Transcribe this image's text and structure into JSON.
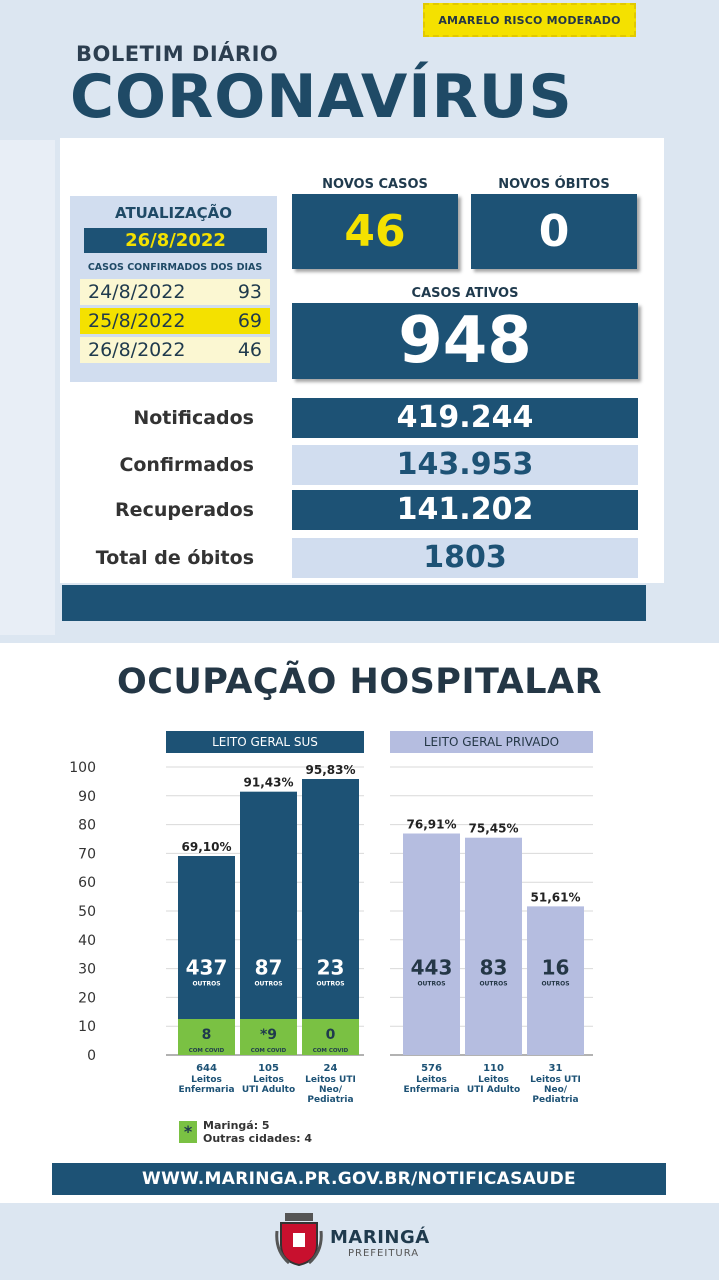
{
  "risk_badge": "AMARELO RISCO MODERADO",
  "header": {
    "subtitle": "BOLETIM DIÁRIO",
    "title": "CORONAVÍRUS"
  },
  "update": {
    "label": "ATUALIZAÇÃO",
    "date": "26/8/2022",
    "confirmed_days_label": "CASOS CONFIRMADOS DOS DIAS",
    "days": [
      {
        "date": "24/8/2022",
        "value": "93"
      },
      {
        "date": "25/8/2022",
        "value": "69"
      },
      {
        "date": "26/8/2022",
        "value": "46"
      }
    ]
  },
  "stats": {
    "new_cases_label": "NOVOS CASOS",
    "new_cases": "46",
    "new_deaths_label": "NOVOS ÓBITOS",
    "new_deaths": "0",
    "active_label": "CASOS ATIVOS",
    "active": "948"
  },
  "totals": [
    {
      "label": "Notificados",
      "value": "419.244"
    },
    {
      "label": "Confirmados",
      "value": "143.953"
    },
    {
      "label": "Recuperados",
      "value": "141.202"
    },
    {
      "label": "Total de óbitos",
      "value": "1803"
    }
  ],
  "occupancy_title": "OCUPAÇÃO HOSPITALAR",
  "chart_data": {
    "type": "bar",
    "ylim": [
      0,
      100
    ],
    "yticks": [
      "100",
      "90",
      "80",
      "70",
      "60",
      "50",
      "40",
      "30",
      "20",
      "10",
      "0"
    ],
    "groups": [
      {
        "name": "LEITO GERAL SUS",
        "color": "#1d5275",
        "bars": [
          {
            "percent": 69.1,
            "percent_label": "69,10%",
            "outros": "437",
            "covid": "8",
            "beds": "644",
            "cat": [
              "Leitos",
              "Enfermaria"
            ]
          },
          {
            "percent": 91.43,
            "percent_label": "91,43%",
            "outros": "87",
            "covid": "*9",
            "beds": "105",
            "cat": [
              "Leitos",
              "UTI Adulto"
            ]
          },
          {
            "percent": 95.83,
            "percent_label": "95,83%",
            "outros": "23",
            "covid": "0",
            "beds": "24",
            "cat": [
              "Leitos UTI",
              "Neo/",
              "Pediatria"
            ]
          }
        ]
      },
      {
        "name": "LEITO GERAL PRIVADO",
        "color": "#b5bde0",
        "bars": [
          {
            "percent": 76.91,
            "percent_label": "76,91%",
            "outros": "443",
            "beds": "576",
            "cat": [
              "Leitos",
              "Enfermaria"
            ]
          },
          {
            "percent": 75.45,
            "percent_label": "75,45%",
            "outros": "83",
            "beds": "110",
            "cat": [
              "Leitos",
              "UTI Adulto"
            ]
          },
          {
            "percent": 51.61,
            "percent_label": "51,61%",
            "outros": "16",
            "beds": "31",
            "cat": [
              "Leitos UTI",
              "Neo/",
              "Pediatria"
            ]
          }
        ]
      }
    ],
    "outros_label": "OUTROS",
    "covid_label": "COM COVID",
    "covid_color": "#7ac143"
  },
  "legend": {
    "icon": "*",
    "line1": "Maringá: 5",
    "line2": "Outras cidades: 4"
  },
  "url": "WWW.MARINGA.PR.GOV.BR/NOTIFICASAUDE",
  "brand": {
    "name": "MARINGÁ",
    "sub": "PREFEITURA"
  }
}
